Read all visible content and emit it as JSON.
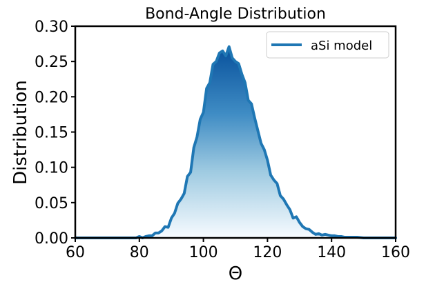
{
  "chart_data": {
    "type": "area",
    "title": "Bond-Angle Distribution",
    "xlabel": "Θ",
    "ylabel": "Distribution",
    "xlim": [
      60,
      160
    ],
    "ylim": [
      0,
      0.3
    ],
    "xticks": [
      "60",
      "80",
      "100",
      "120",
      "140",
      "160"
    ],
    "xtick_values": [
      60,
      80,
      100,
      120,
      140,
      160
    ],
    "yticks": [
      "0.00",
      "0.05",
      "0.10",
      "0.15",
      "0.20",
      "0.25",
      "0.30"
    ],
    "ytick_values": [
      0,
      0.05,
      0.1,
      0.15,
      0.2,
      0.25,
      0.3
    ],
    "grid": false,
    "legend_position": "top-right",
    "colors": {
      "line": "#1f77b4",
      "fill_top": "#08519c",
      "fill_bottom": "#f7fbff"
    },
    "series": [
      {
        "name": "aSi model",
        "x": [
          60,
          62,
          64,
          66,
          68,
          70,
          72,
          74,
          76,
          78,
          79,
          80,
          81,
          82,
          83,
          84,
          85,
          86,
          87,
          88,
          89,
          90,
          91,
          92,
          93,
          94,
          95,
          96,
          97,
          98,
          99,
          100,
          101,
          102,
          103,
          104,
          105,
          106,
          107,
          108,
          109,
          110,
          111,
          112,
          113,
          114,
          115,
          116,
          117,
          118,
          119,
          120,
          121,
          122,
          123,
          124,
          125,
          126,
          127,
          128,
          129,
          130,
          131,
          132,
          133,
          134,
          135,
          136,
          137,
          138,
          139,
          140,
          141,
          142,
          143,
          144,
          145,
          146,
          148,
          150,
          152,
          154,
          156,
          158,
          160
        ],
        "y": [
          0.0,
          0.0,
          0.0,
          0.0,
          0.0,
          0.0,
          0.0,
          0.0,
          0.0,
          0.0,
          0.0,
          0.002,
          0.0,
          0.002,
          0.003,
          0.003,
          0.007,
          0.007,
          0.01,
          0.016,
          0.015,
          0.028,
          0.035,
          0.049,
          0.055,
          0.063,
          0.087,
          0.093,
          0.128,
          0.143,
          0.168,
          0.178,
          0.212,
          0.22,
          0.246,
          0.25,
          0.262,
          0.265,
          0.258,
          0.271,
          0.255,
          0.25,
          0.247,
          0.232,
          0.22,
          0.195,
          0.19,
          0.17,
          0.152,
          0.134,
          0.125,
          0.11,
          0.089,
          0.082,
          0.077,
          0.06,
          0.055,
          0.047,
          0.04,
          0.028,
          0.03,
          0.022,
          0.016,
          0.013,
          0.012,
          0.008,
          0.005,
          0.006,
          0.004,
          0.005,
          0.004,
          0.003,
          0.003,
          0.002,
          0.002,
          0.001,
          0.001,
          0.001,
          0.001,
          0.0,
          0.0,
          0.0,
          0.0,
          0.0,
          0.0
        ]
      }
    ]
  }
}
